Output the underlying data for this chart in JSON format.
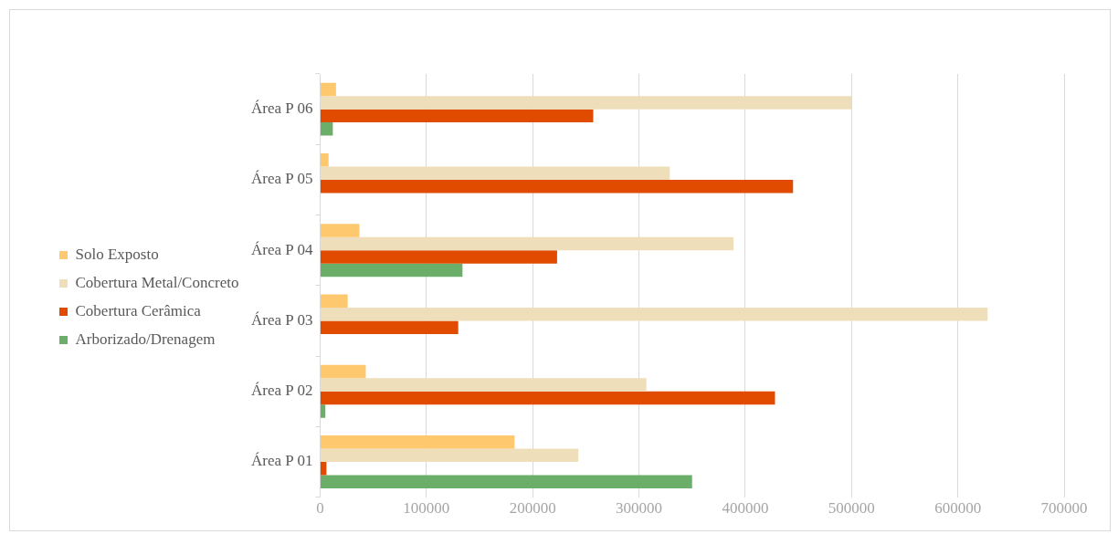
{
  "chart_data": {
    "type": "bar",
    "orientation": "horizontal",
    "categories": [
      "Área P 06",
      "Área P 05",
      "Área P 04",
      "Área P 03",
      "Área P 02",
      "Área P 01"
    ],
    "series": [
      {
        "name": "Solo Exposto",
        "color": "#fdc86e",
        "values": [
          15000,
          8000,
          37000,
          26000,
          43000,
          183000
        ]
      },
      {
        "name": "Cobertura Metal/Concreto",
        "color": "#eedfba",
        "values": [
          500000,
          329000,
          389000,
          628000,
          307000,
          243000
        ]
      },
      {
        "name": "Cobertura Cerâmica",
        "color": "#e14b00",
        "values": [
          257000,
          445000,
          223000,
          130000,
          428000,
          6000
        ]
      },
      {
        "name": "Arborizado/Drenagem",
        "color": "#6aae6a",
        "values": [
          12000,
          null,
          134000,
          null,
          5000,
          350000
        ]
      }
    ],
    "xlim": [
      0,
      700000
    ],
    "xticks": [
      0,
      100000,
      200000,
      300000,
      400000,
      500000,
      600000,
      700000
    ],
    "grid": "x",
    "legend": "left"
  }
}
